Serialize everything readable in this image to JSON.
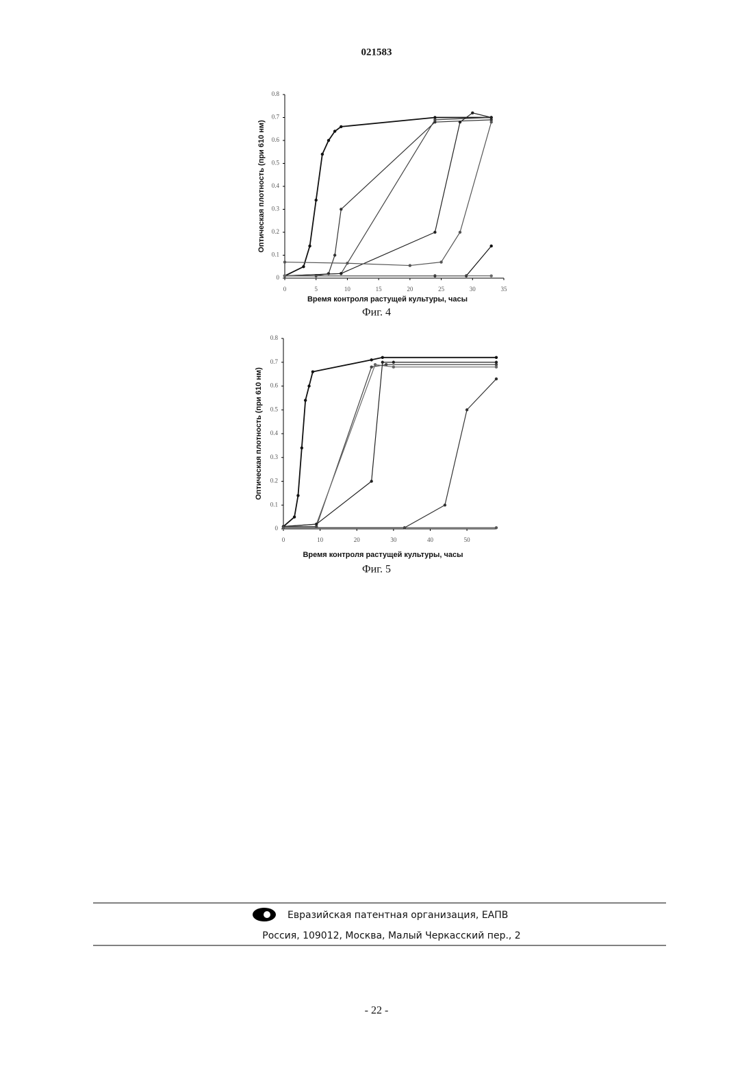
{
  "header": {
    "number": "021583"
  },
  "chart_data": [
    {
      "type": "line",
      "x_label": "Время контроля растущей культуры, часы",
      "y_label": "Оптическая плотность (при 610 нм)",
      "caption": "Фиг. 4",
      "xlim": [
        0,
        35
      ],
      "xticks": [
        0,
        5,
        10,
        15,
        20,
        25,
        30,
        35
      ],
      "ylim": [
        0,
        0.8
      ],
      "yticks": [
        0,
        0.1,
        0.2,
        0.3,
        0.4,
        0.5,
        0.6,
        0.7,
        0.8
      ],
      "series": [
        {
          "color": "#111111",
          "x": [
            0,
            3,
            4,
            5,
            6,
            7,
            8,
            9,
            24,
            33
          ],
          "values": [
            0.01,
            0.05,
            0.14,
            0.34,
            0.54,
            0.6,
            0.64,
            0.66,
            0.7,
            0.7
          ]
        },
        {
          "color": "#333333",
          "x": [
            0,
            5,
            7,
            8,
            9,
            24,
            33
          ],
          "values": [
            0.01,
            0.01,
            0.02,
            0.1,
            0.3,
            0.68,
            0.69
          ]
        },
        {
          "color": "#444444",
          "x": [
            0,
            9,
            24,
            33
          ],
          "values": [
            0.01,
            0.02,
            0.69,
            0.7
          ]
        },
        {
          "color": "#222222",
          "x": [
            0,
            9,
            24,
            28,
            30,
            33
          ],
          "values": [
            0.01,
            0.02,
            0.2,
            0.68,
            0.72,
            0.7
          ]
        },
        {
          "color": "#555555",
          "x": [
            0,
            10,
            20,
            25,
            28,
            33
          ],
          "values": [
            0.07,
            0.065,
            0.055,
            0.07,
            0.2,
            0.68
          ]
        },
        {
          "color": "#111111",
          "x": [
            0,
            24,
            29,
            33
          ],
          "values": [
            0.01,
            0.01,
            0.01,
            0.14
          ]
        },
        {
          "color": "#666666",
          "x": [
            0,
            33
          ],
          "values": [
            0.01,
            0.01
          ]
        }
      ]
    },
    {
      "type": "line",
      "x_label": "Время контроля растущей культуры, часы",
      "y_label": "Оптическая плотность (при 610 нм)",
      "caption": "Фиг. 5",
      "xlim": [
        0,
        58
      ],
      "xticks": [
        0,
        10,
        20,
        30,
        40,
        50
      ],
      "ylim": [
        0,
        0.8
      ],
      "yticks": [
        0,
        0.1,
        0.2,
        0.3,
        0.4,
        0.5,
        0.6,
        0.7,
        0.8
      ],
      "series": [
        {
          "color": "#111111",
          "x": [
            0,
            3,
            4,
            5,
            6,
            7,
            8,
            24,
            27,
            58
          ],
          "values": [
            0.01,
            0.05,
            0.14,
            0.34,
            0.54,
            0.6,
            0.66,
            0.71,
            0.72,
            0.72
          ]
        },
        {
          "color": "#444444",
          "x": [
            0,
            9,
            24,
            28,
            58
          ],
          "values": [
            0.01,
            0.01,
            0.68,
            0.69,
            0.69
          ]
        },
        {
          "color": "#666666",
          "x": [
            0,
            9,
            25,
            30,
            58
          ],
          "values": [
            0.01,
            0.02,
            0.69,
            0.68,
            0.68
          ]
        },
        {
          "color": "#222222",
          "x": [
            0,
            9,
            24,
            27,
            30,
            58
          ],
          "values": [
            0.01,
            0.02,
            0.2,
            0.7,
            0.7,
            0.7
          ]
        },
        {
          "color": "#333333",
          "x": [
            0,
            33,
            44,
            50,
            58
          ],
          "values": [
            0.005,
            0.005,
            0.1,
            0.5,
            0.63
          ]
        },
        {
          "color": "#555555",
          "x": [
            0,
            58
          ],
          "values": [
            0.005,
            0.005
          ]
        }
      ]
    }
  ],
  "footer": {
    "organization": "Евразийская патентная организация, ЕАПВ",
    "address": "Россия, 109012, Москва, Малый Черкасский пер., 2"
  },
  "page_number": "- 22 -"
}
